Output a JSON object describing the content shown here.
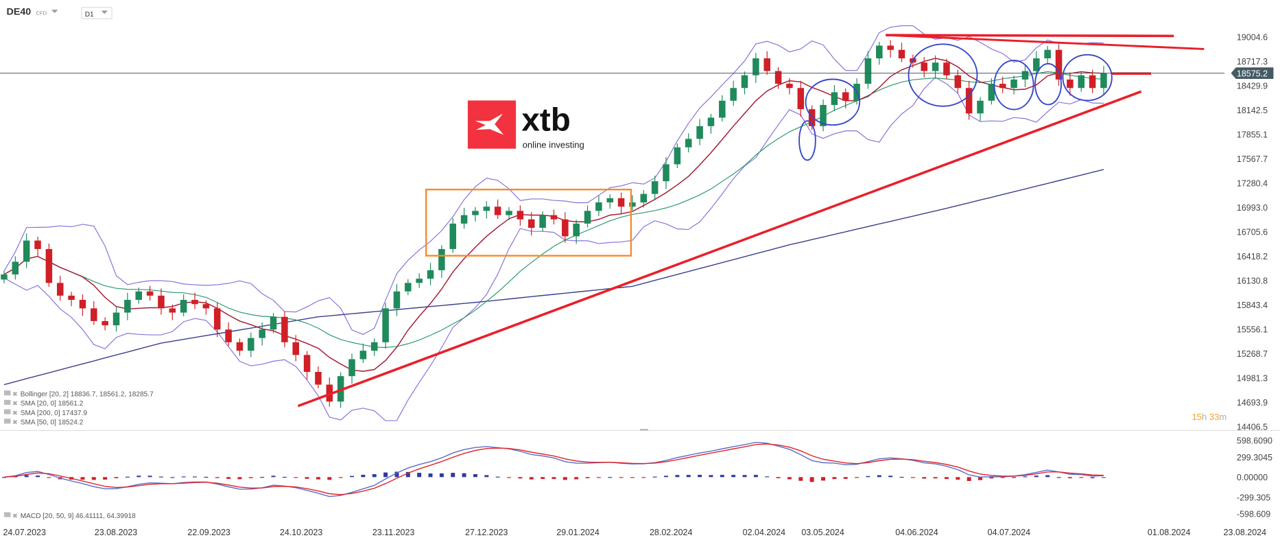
{
  "header": {
    "symbol": "DE40",
    "symbol_type": "CFD",
    "timeframe": "D1"
  },
  "logo": {
    "brand": "xtb",
    "tagline": "online investing",
    "color": "#f2323f"
  },
  "countdown": {
    "hours": "15",
    "h_unit": "h",
    "minutes": "33",
    "m_unit": "m"
  },
  "legend": [
    {
      "label": "Bollinger  [20, 2] 18836.7,  18561.2,  18285.7"
    },
    {
      "label": "SMA [20, 0] 18561.2"
    },
    {
      "label": "SMA [200, 0] 17437.9"
    },
    {
      "label": "SMA [50, 0] 18524.2"
    }
  ],
  "macd_legend": "MACD  [20, 50, 9] 46.41111,  64.39918",
  "current_price": "18575.2",
  "colors": {
    "bull": "#1f8a5b",
    "bear": "#d01f27",
    "bollinger": "#8a72d8",
    "sma20": "#a3172d",
    "sma50": "#2c9a6c",
    "sma200": "#3b3f8e",
    "macd": "#5b6ec9",
    "signal": "#e0262c",
    "price_tag": "#455a64",
    "trendline": "#e8202a",
    "range_box": "#f7892a",
    "ellipse": "#3848c8",
    "countdown": "#f7a02a"
  },
  "chart_data": {
    "type": "candlestick",
    "instrument": "DE40",
    "timeframe": "D1",
    "y_ticks": [
      "19004.6",
      "18717.3",
      "18429.9",
      "18142.5",
      "17855.1",
      "17567.7",
      "17280.4",
      "16993.0",
      "16705.6",
      "16418.2",
      "16130.8",
      "15843.4",
      "15556.1",
      "15268.7",
      "14981.3",
      "14693.9",
      "14406.5"
    ],
    "ylim": [
      14406.5,
      19004.6
    ],
    "x_ticks": [
      "24.07.2023",
      "23.08.2023",
      "22.09.2023",
      "24.10.2023",
      "23.11.2023",
      "27.12.2023",
      "29.01.2024",
      "28.02.2024",
      "02.04.2024",
      "03.05.2024",
      "04.06.2024",
      "04.07.2024",
      "01.08.2024",
      "23.08.2024"
    ],
    "closes": [
      16200,
      16350,
      16600,
      16500,
      16100,
      15950,
      15900,
      15800,
      15650,
      15600,
      15750,
      15900,
      16000,
      15950,
      15800,
      15750,
      15900,
      15850,
      15800,
      15550,
      15400,
      15300,
      15450,
      15550,
      15700,
      15400,
      15250,
      15050,
      14900,
      14700,
      15000,
      15200,
      15300,
      15400,
      15800,
      16000,
      16100,
      16150,
      16250,
      16500,
      16800,
      16900,
      16950,
      17000,
      16900,
      16950,
      16850,
      16750,
      16900,
      16850,
      16650,
      16800,
      16950,
      17050,
      17100,
      17000,
      17050,
      17150,
      17300,
      17500,
      17700,
      17800,
      17950,
      18050,
      18250,
      18400,
      18550,
      18750,
      18600,
      18450,
      18400,
      18150,
      17950,
      18200,
      18350,
      18250,
      18450,
      18750,
      18900,
      18850,
      18750,
      18700,
      18600,
      18700,
      18550,
      18400,
      18100,
      18250,
      18450,
      18400,
      18500,
      18600,
      18750,
      18850,
      18500,
      18400,
      18550,
      18400,
      18575.2
    ],
    "sma200": [
      14900,
      15390,
      15700,
      15870,
      16060,
      16550,
      16980,
      17437.9
    ],
    "macd_y_ticks": [
      "598.6090",
      "299.3045",
      "0.00000",
      "-299.305",
      "-598.609"
    ],
    "macd_ylim": [
      -598.609,
      598.609
    ],
    "indicators": [
      "Bollinger [20, 2]",
      "SMA [20, 0]",
      "SMA [200, 0]",
      "SMA [50, 0]",
      "MACD [20, 50, 9]"
    ]
  }
}
